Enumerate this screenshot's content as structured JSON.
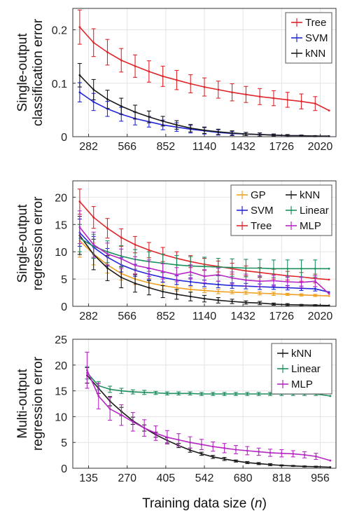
{
  "colors": {
    "tree": "#e0262b",
    "svm": "#2226d8",
    "knn": "#1a1a1a",
    "gp": "#f0a020",
    "linear": "#1e8f5e",
    "mlp": "#b526c4"
  },
  "chart_data": [
    {
      "type": "line",
      "ylabel": [
        "Single-output",
        "classification error"
      ],
      "xlabel": "",
      "xticks": [
        "282",
        "566",
        "852",
        "1140",
        "1432",
        "1726",
        "2020"
      ],
      "xlim": [
        150,
        2050
      ],
      "ylim": [
        0,
        0.24
      ],
      "yticks": [
        "0",
        "0.1",
        "0.2"
      ],
      "yticks_values": [
        0,
        0.1,
        0.2
      ],
      "grid": true,
      "legend_position": "top-right",
      "legend_columns": 1,
      "x": [
        200,
        300,
        400,
        500,
        600,
        700,
        800,
        900,
        1000,
        1100,
        1200,
        1300,
        1400,
        1500,
        1600,
        1700,
        1800,
        1900,
        2000
      ],
      "series": [
        {
          "name": "Tree",
          "color_key": "tree",
          "values": [
            0.205,
            0.176,
            0.158,
            0.143,
            0.132,
            0.122,
            0.113,
            0.106,
            0.099,
            0.093,
            0.088,
            0.083,
            0.079,
            0.075,
            0.072,
            0.069,
            0.066,
            0.062,
            0.049
          ],
          "errors": [
            0.032,
            0.026,
            0.024,
            0.022,
            0.021,
            0.02,
            0.019,
            0.018,
            0.017,
            0.017,
            0.016,
            0.016,
            0.015,
            0.015,
            0.014,
            0.014,
            0.014,
            0.013,
            0.0
          ]
        },
        {
          "name": "SVM",
          "color_key": "svm",
          "values": [
            0.083,
            0.065,
            0.052,
            0.042,
            0.034,
            0.028,
            0.022,
            0.018,
            0.014,
            0.011,
            0.008,
            0.006,
            0.005,
            0.004,
            0.003,
            0.002,
            0.002,
            0.001,
            0.001
          ],
          "errors": [
            0.018,
            0.016,
            0.014,
            0.013,
            0.012,
            0.01,
            0.009,
            0.008,
            0.007,
            0.006,
            0.005,
            0.004,
            0.003,
            0.003,
            0.002,
            0.002,
            0.001,
            0.001,
            0.0
          ]
        },
        {
          "name": "kNN",
          "color_key": "knn",
          "values": [
            0.115,
            0.088,
            0.07,
            0.057,
            0.046,
            0.037,
            0.029,
            0.022,
            0.016,
            0.012,
            0.009,
            0.007,
            0.005,
            0.004,
            0.003,
            0.002,
            0.002,
            0.001,
            0.001
          ],
          "errors": [
            0.022,
            0.019,
            0.017,
            0.015,
            0.013,
            0.011,
            0.009,
            0.008,
            0.007,
            0.006,
            0.005,
            0.004,
            0.003,
            0.003,
            0.002,
            0.002,
            0.001,
            0.001,
            0.0
          ]
        }
      ]
    },
    {
      "type": "line",
      "ylabel": [
        "Single-output",
        "regression error"
      ],
      "xlabel": "",
      "xticks": [
        "282",
        "566",
        "852",
        "1140",
        "1432",
        "1726",
        "2020"
      ],
      "xlim": [
        150,
        2050
      ],
      "ylim": [
        0,
        23
      ],
      "yticks": [
        "0",
        "5",
        "10",
        "15",
        "20"
      ],
      "yticks_values": [
        0,
        5,
        10,
        15,
        20
      ],
      "grid": true,
      "legend_position": "top-right",
      "legend_columns": 2,
      "x": [
        200,
        300,
        400,
        500,
        600,
        700,
        800,
        900,
        1000,
        1100,
        1200,
        1300,
        1400,
        1500,
        1600,
        1700,
        1800,
        1900,
        2000
      ],
      "series": [
        {
          "name": "GP",
          "color_key": "gp",
          "values": [
            12.0,
            9.6,
            7.6,
            6.0,
            5.0,
            4.3,
            3.8,
            3.4,
            3.1,
            2.9,
            2.7,
            2.6,
            2.5,
            2.4,
            2.3,
            2.2,
            2.1,
            2.0,
            1.9
          ],
          "errors": [
            3.0,
            2.0,
            1.5,
            1.2,
            1.0,
            0.8,
            0.7,
            0.6,
            0.5,
            0.4,
            0.4,
            0.3,
            0.3,
            0.3,
            0.3,
            0.2,
            0.2,
            0.2,
            0.0
          ]
        },
        {
          "name": "SVM",
          "color_key": "svm",
          "values": [
            13.5,
            10.8,
            9.0,
            7.6,
            6.6,
            5.9,
            5.3,
            4.8,
            4.5,
            4.2,
            4.0,
            3.8,
            3.7,
            3.6,
            3.5,
            3.4,
            3.3,
            3.2,
            2.6
          ],
          "errors": [
            2.5,
            2.0,
            1.6,
            1.3,
            1.1,
            1.0,
            0.9,
            0.8,
            0.7,
            0.6,
            0.6,
            0.5,
            0.5,
            0.5,
            0.4,
            0.4,
            0.4,
            0.4,
            0.0
          ]
        },
        {
          "name": "Tree",
          "color_key": "tree",
          "values": [
            19.2,
            16.3,
            14.3,
            12.6,
            11.3,
            10.3,
            9.5,
            8.8,
            8.2,
            7.7,
            7.3,
            6.9,
            6.5,
            6.2,
            5.9,
            5.6,
            5.4,
            5.1,
            4.9
          ],
          "errors": [
            2.3,
            2.0,
            1.8,
            1.6,
            1.5,
            1.4,
            1.3,
            1.2,
            1.1,
            1.1,
            1.0,
            1.0,
            0.9,
            0.9,
            0.9,
            0.8,
            0.8,
            0.8,
            0.0
          ]
        },
        {
          "name": "kNN",
          "color_key": "knn",
          "values": [
            13.0,
            9.5,
            7.0,
            5.3,
            4.2,
            3.4,
            2.7,
            2.2,
            1.8,
            1.4,
            1.1,
            0.9,
            0.7,
            0.6,
            0.4,
            0.3,
            0.25,
            0.2,
            0.15
          ],
          "errors": [
            3.5,
            2.8,
            2.3,
            1.9,
            1.6,
            1.3,
            1.1,
            0.9,
            0.8,
            0.6,
            0.5,
            0.4,
            0.3,
            0.3,
            0.2,
            0.2,
            0.1,
            0.1,
            0.0
          ]
        },
        {
          "name": "Linear",
          "color_key": "linear",
          "values": [
            12.5,
            11.0,
            10.0,
            9.2,
            8.6,
            8.2,
            7.9,
            7.6,
            7.4,
            7.3,
            7.2,
            7.1,
            7.0,
            7.0,
            6.9,
            6.9,
            6.9,
            6.9,
            6.9
          ],
          "errors": [
            2.5,
            2.2,
            2.0,
            1.9,
            1.8,
            1.8,
            1.7,
            1.7,
            1.7,
            1.7,
            1.6,
            1.6,
            1.6,
            1.6,
            1.6,
            1.6,
            1.6,
            1.6,
            0.0
          ]
        },
        {
          "name": "MLP",
          "color_key": "mlp",
          "values": [
            14.5,
            11.3,
            9.6,
            8.7,
            7.5,
            7.0,
            6.4,
            5.8,
            6.3,
            5.5,
            5.8,
            5.2,
            4.8,
            4.6,
            4.7,
            4.5,
            4.4,
            4.6,
            2.3
          ],
          "errors": [
            3.0,
            2.3,
            2.0,
            1.8,
            1.6,
            1.5,
            1.4,
            1.3,
            1.3,
            1.2,
            1.2,
            1.1,
            1.1,
            1.0,
            1.0,
            1.0,
            1.0,
            1.0,
            0.0
          ]
        }
      ]
    },
    {
      "type": "line",
      "ylabel": [
        "Multi-output",
        "regression error"
      ],
      "xlabel": "Training data size (n)",
      "xlabel_parts": [
        "Training data size (",
        "n",
        ")"
      ],
      "xticks": [
        "135",
        "270",
        "405",
        "542",
        "680",
        "818",
        "956"
      ],
      "xlim": [
        50,
        970
      ],
      "ylim": [
        0,
        25
      ],
      "yticks": [
        "0",
        "5",
        "10",
        "15",
        "20",
        "25"
      ],
      "yticks_values": [
        0,
        5,
        10,
        15,
        20,
        25
      ],
      "grid": true,
      "legend_position": "top-right",
      "legend_columns": 1,
      "x": [
        100,
        140,
        180,
        220,
        260,
        300,
        340,
        380,
        420,
        460,
        500,
        540,
        580,
        620,
        660,
        700,
        740,
        780,
        820,
        860,
        900,
        950
      ],
      "series": [
        {
          "name": "kNN",
          "color_key": "knn",
          "values": [
            18.0,
            15.5,
            13.0,
            11.0,
            9.2,
            7.8,
            6.5,
            5.4,
            4.4,
            3.5,
            2.8,
            2.2,
            1.8,
            1.4,
            1.1,
            0.9,
            0.7,
            0.55,
            0.45,
            0.35,
            0.3,
            0.2
          ],
          "errors": [
            1.5,
            1.0,
            0.9,
            0.8,
            0.7,
            0.6,
            0.5,
            0.5,
            0.4,
            0.4,
            0.3,
            0.3,
            0.3,
            0.2,
            0.2,
            0.2,
            0.2,
            0.1,
            0.1,
            0.1,
            0.1,
            0.0
          ]
        },
        {
          "name": "Linear",
          "color_key": "linear",
          "values": [
            18.5,
            16.0,
            15.3,
            15.0,
            14.8,
            14.7,
            14.6,
            14.5,
            14.5,
            14.5,
            14.4,
            14.4,
            14.4,
            14.4,
            14.4,
            14.4,
            14.4,
            14.4,
            14.4,
            14.4,
            14.4,
            14.0
          ],
          "errors": [
            1.2,
            0.8,
            0.6,
            0.5,
            0.4,
            0.4,
            0.3,
            0.3,
            0.3,
            0.3,
            0.3,
            0.3,
            0.3,
            0.3,
            0.3,
            0.3,
            0.3,
            0.3,
            0.3,
            0.3,
            0.3,
            0.0
          ]
        },
        {
          "name": "MLP",
          "color_key": "mlp",
          "values": [
            19.0,
            14.0,
            11.5,
            10.3,
            9.0,
            7.8,
            6.8,
            6.0,
            5.5,
            5.0,
            4.6,
            4.2,
            3.9,
            3.6,
            3.4,
            3.2,
            3.0,
            2.9,
            2.8,
            2.6,
            2.3,
            1.5
          ],
          "errors": [
            3.5,
            2.5,
            2.2,
            2.0,
            1.8,
            1.6,
            1.4,
            1.3,
            1.2,
            1.1,
            1.0,
            0.9,
            0.9,
            0.8,
            0.8,
            0.7,
            0.7,
            0.7,
            0.6,
            0.6,
            0.6,
            0.0
          ]
        }
      ]
    }
  ]
}
